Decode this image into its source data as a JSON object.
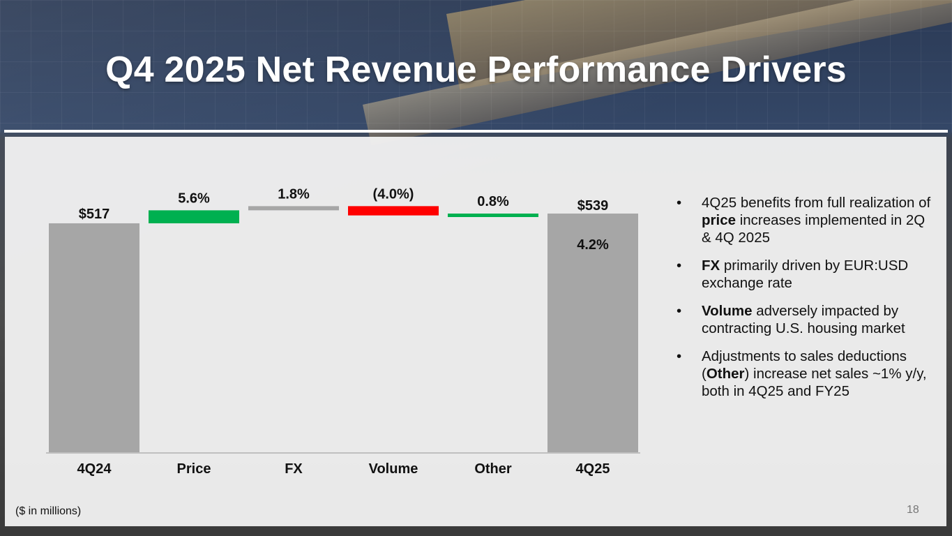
{
  "slide": {
    "title": "Q4 2025 Net Revenue Performance Drivers",
    "units_note": "($ in millions)",
    "page_number": "18"
  },
  "chart_data": {
    "type": "waterfall",
    "title": "",
    "currency_unit": "$ in millions",
    "categories": [
      "4Q24",
      "Price",
      "FX",
      "Volume",
      "Other",
      "4Q25"
    ],
    "start": {
      "label": "4Q24",
      "value": 517,
      "display": "$517"
    },
    "end": {
      "label": "4Q25",
      "value": 539,
      "display": "$539",
      "growth_display": "4.2%"
    },
    "steps": [
      {
        "label": "Price",
        "pct": 5.6,
        "display": "5.6%",
        "color": "#00b050"
      },
      {
        "label": "FX",
        "pct": 1.8,
        "display": "1.8%",
        "color": "#a6a6a6"
      },
      {
        "label": "Volume",
        "pct": -4.0,
        "display": "(4.0%)",
        "color": "#ff0000"
      },
      {
        "label": "Other",
        "pct": 0.8,
        "display": "0.8%",
        "color": "#00b050"
      }
    ],
    "total_color": "#a6a6a6",
    "ylim": [
      0,
      560
    ]
  },
  "bullets": [
    {
      "parts": [
        {
          "t": "4Q25 benefits from full realization of ",
          "b": false
        },
        {
          "t": "price",
          "b": true
        },
        {
          "t": " increases implemented in 2Q & 4Q 2025",
          "b": false
        }
      ]
    },
    {
      "parts": [
        {
          "t": "FX",
          "b": true
        },
        {
          "t": " primarily driven by EUR:USD exchange rate",
          "b": false
        }
      ]
    },
    {
      "parts": [
        {
          "t": "Volume",
          "b": true
        },
        {
          "t": " adversely impacted by contracting U.S. housing market",
          "b": false
        }
      ]
    },
    {
      "parts": [
        {
          "t": "Adjustments to sales deductions (",
          "b": false
        },
        {
          "t": "Other",
          "b": true
        },
        {
          "t": ") increase net sales ~1% y/y, both in 4Q25 and FY25",
          "b": false
        }
      ]
    }
  ],
  "bullet_char": "•"
}
